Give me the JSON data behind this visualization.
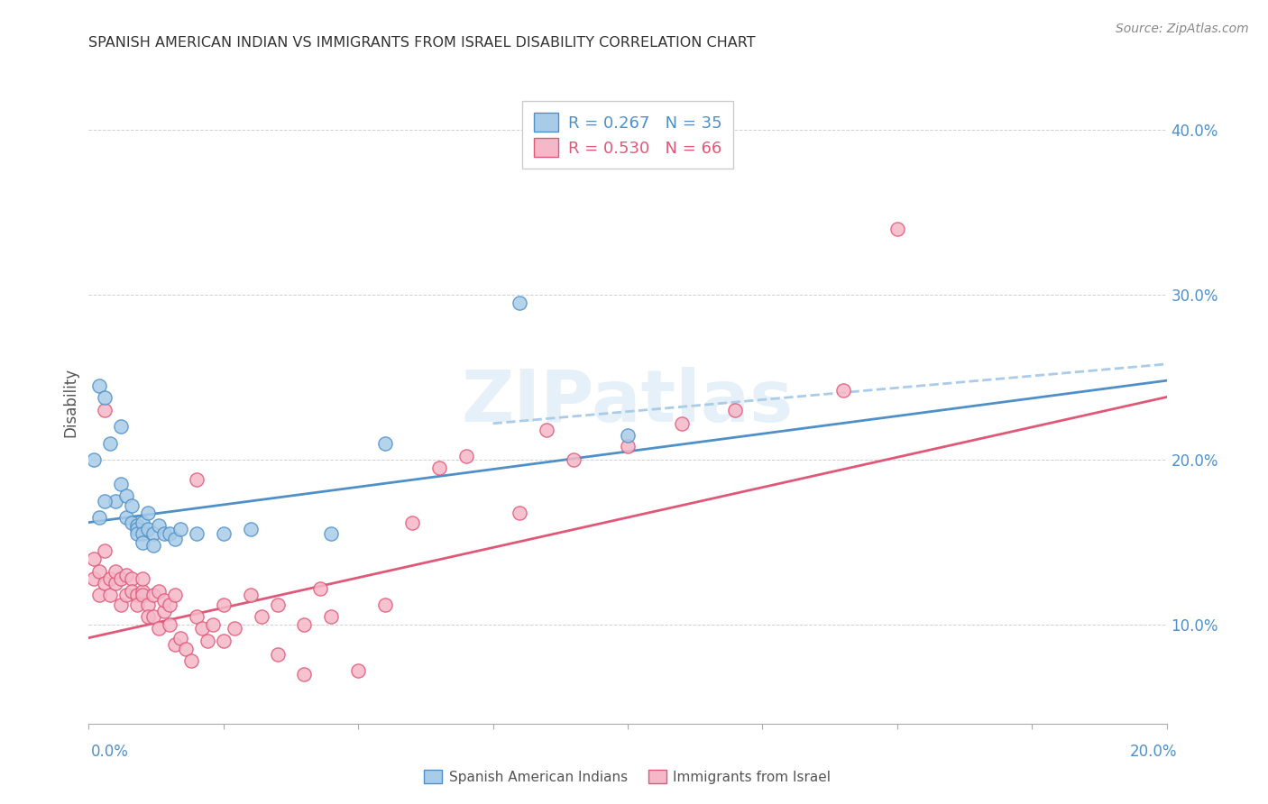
{
  "title": "SPANISH AMERICAN INDIAN VS IMMIGRANTS FROM ISRAEL DISABILITY CORRELATION CHART",
  "source": "Source: ZipAtlas.com",
  "ylabel": "Disability",
  "ytick_labels": [
    "10.0%",
    "20.0%",
    "30.0%",
    "40.0%"
  ],
  "ytick_values": [
    0.1,
    0.2,
    0.3,
    0.4
  ],
  "xlim": [
    0.0,
    0.2
  ],
  "ylim": [
    0.04,
    0.43
  ],
  "legend1_R": "0.267",
  "legend1_N": "35",
  "legend2_R": "0.530",
  "legend2_N": "66",
  "color_blue": "#a8cce8",
  "color_pink": "#f5b8c8",
  "line_blue": "#4f90c8",
  "line_pink": "#e05878",
  "line_blue_dash": "#aacce8",
  "watermark": "ZIPatlas",
  "blue_scatter": [
    [
      0.001,
      0.2
    ],
    [
      0.002,
      0.245
    ],
    [
      0.003,
      0.238
    ],
    [
      0.004,
      0.21
    ],
    [
      0.005,
      0.175
    ],
    [
      0.006,
      0.22
    ],
    [
      0.006,
      0.185
    ],
    [
      0.007,
      0.178
    ],
    [
      0.007,
      0.165
    ],
    [
      0.008,
      0.172
    ],
    [
      0.008,
      0.162
    ],
    [
      0.009,
      0.16
    ],
    [
      0.009,
      0.158
    ],
    [
      0.009,
      0.155
    ],
    [
      0.01,
      0.162
    ],
    [
      0.01,
      0.155
    ],
    [
      0.01,
      0.15
    ],
    [
      0.011,
      0.168
    ],
    [
      0.011,
      0.158
    ],
    [
      0.012,
      0.155
    ],
    [
      0.012,
      0.148
    ],
    [
      0.013,
      0.16
    ],
    [
      0.014,
      0.155
    ],
    [
      0.015,
      0.155
    ],
    [
      0.016,
      0.152
    ],
    [
      0.017,
      0.158
    ],
    [
      0.02,
      0.155
    ],
    [
      0.025,
      0.155
    ],
    [
      0.03,
      0.158
    ],
    [
      0.045,
      0.155
    ],
    [
      0.055,
      0.21
    ],
    [
      0.08,
      0.295
    ],
    [
      0.1,
      0.215
    ],
    [
      0.003,
      0.175
    ],
    [
      0.002,
      0.165
    ]
  ],
  "pink_scatter": [
    [
      0.001,
      0.14
    ],
    [
      0.001,
      0.128
    ],
    [
      0.002,
      0.132
    ],
    [
      0.002,
      0.118
    ],
    [
      0.003,
      0.125
    ],
    [
      0.003,
      0.145
    ],
    [
      0.004,
      0.128
    ],
    [
      0.004,
      0.118
    ],
    [
      0.005,
      0.125
    ],
    [
      0.005,
      0.132
    ],
    [
      0.006,
      0.128
    ],
    [
      0.006,
      0.112
    ],
    [
      0.007,
      0.13
    ],
    [
      0.007,
      0.118
    ],
    [
      0.008,
      0.128
    ],
    [
      0.008,
      0.12
    ],
    [
      0.009,
      0.118
    ],
    [
      0.009,
      0.112
    ],
    [
      0.01,
      0.12
    ],
    [
      0.01,
      0.128
    ],
    [
      0.01,
      0.118
    ],
    [
      0.011,
      0.112
    ],
    [
      0.011,
      0.105
    ],
    [
      0.012,
      0.118
    ],
    [
      0.012,
      0.105
    ],
    [
      0.013,
      0.12
    ],
    [
      0.013,
      0.098
    ],
    [
      0.014,
      0.108
    ],
    [
      0.014,
      0.115
    ],
    [
      0.015,
      0.1
    ],
    [
      0.015,
      0.112
    ],
    [
      0.016,
      0.118
    ],
    [
      0.016,
      0.088
    ],
    [
      0.017,
      0.092
    ],
    [
      0.018,
      0.085
    ],
    [
      0.019,
      0.078
    ],
    [
      0.02,
      0.188
    ],
    [
      0.02,
      0.105
    ],
    [
      0.021,
      0.098
    ],
    [
      0.022,
      0.09
    ],
    [
      0.023,
      0.1
    ],
    [
      0.025,
      0.112
    ],
    [
      0.025,
      0.09
    ],
    [
      0.027,
      0.098
    ],
    [
      0.03,
      0.118
    ],
    [
      0.032,
      0.105
    ],
    [
      0.035,
      0.112
    ],
    [
      0.035,
      0.082
    ],
    [
      0.04,
      0.1
    ],
    [
      0.04,
      0.07
    ],
    [
      0.043,
      0.122
    ],
    [
      0.045,
      0.105
    ],
    [
      0.05,
      0.072
    ],
    [
      0.055,
      0.112
    ],
    [
      0.06,
      0.162
    ],
    [
      0.065,
      0.195
    ],
    [
      0.07,
      0.202
    ],
    [
      0.08,
      0.168
    ],
    [
      0.085,
      0.218
    ],
    [
      0.09,
      0.2
    ],
    [
      0.1,
      0.208
    ],
    [
      0.11,
      0.222
    ],
    [
      0.12,
      0.23
    ],
    [
      0.14,
      0.242
    ],
    [
      0.15,
      0.34
    ],
    [
      0.003,
      0.23
    ]
  ],
  "blue_line": [
    [
      0.0,
      0.162
    ],
    [
      0.2,
      0.248
    ]
  ],
  "pink_line": [
    [
      0.0,
      0.092
    ],
    [
      0.2,
      0.238
    ]
  ],
  "blue_line_dashed": [
    [
      0.075,
      0.222
    ],
    [
      0.2,
      0.258
    ]
  ]
}
